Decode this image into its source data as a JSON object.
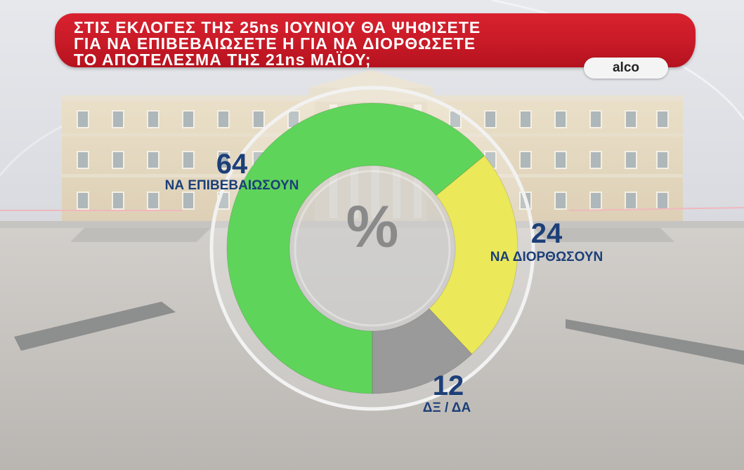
{
  "header": {
    "title_lines": [
      "ΣΤΙΣ ΕΚΛΟΓΕΣ ΤΗΣ 25ns ΙΟΥΝΙΟΥ ΘΑ ΨΗΦΙΣΕΤΕ",
      "ΓΙΑ ΝΑ ΕΠΙΒΕΒΑΙΩΣΕΤΕ Η ΓΙΑ ΝΑ ΔΙΟΡΘΩΣΕΤΕ",
      "ΤΟ ΑΠΟΤΕΛΕΣΜΑ ΤΗΣ 21ns ΜΑΪΟΥ;"
    ],
    "source": "alco",
    "bar_color": "#c81a27"
  },
  "chart_data": {
    "type": "pie",
    "style": "donut",
    "center_symbol": "%",
    "slices": [
      {
        "label": "ΝΑ ΕΠΙΒΕΒΑΙΩΣΟΥΝ",
        "value": 64,
        "color": "#5fd45a"
      },
      {
        "label": "ΝΑ ΔΙΟΡΘΩΣΟΥΝ",
        "value": 24,
        "color": "#ebe85a"
      },
      {
        "label": "ΔΞ / ΔΑ",
        "value": 12,
        "color": "#9a9a9a"
      }
    ]
  }
}
